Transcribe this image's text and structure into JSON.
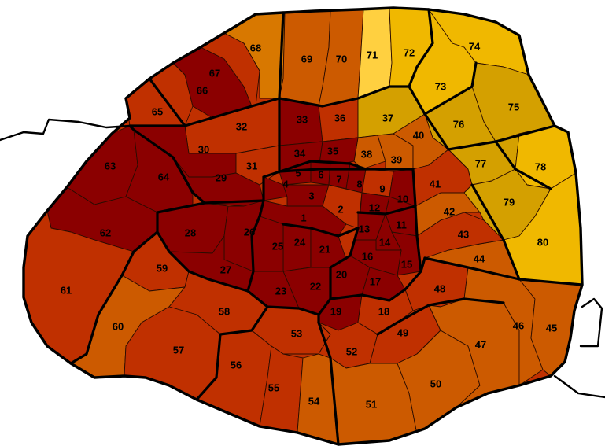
{
  "map": {
    "colors": {
      "level1": "#8b0000",
      "level2": "#c03000",
      "level3": "#cc5a00",
      "level4": "#d87800",
      "level5": "#d4a000",
      "level6": "#f0b800",
      "level7": "#ffd040"
    },
    "districts": [
      {
        "id": "1",
        "level": 1
      },
      {
        "id": "2",
        "level": 2
      },
      {
        "id": "3",
        "level": 1
      },
      {
        "id": "4",
        "level": 1
      },
      {
        "id": "5",
        "level": 1
      },
      {
        "id": "6",
        "level": 1
      },
      {
        "id": "7",
        "level": 1
      },
      {
        "id": "8",
        "level": 1
      },
      {
        "id": "9",
        "level": 2
      },
      {
        "id": "10",
        "level": 1
      },
      {
        "id": "11",
        "level": 1
      },
      {
        "id": "12",
        "level": 1
      },
      {
        "id": "13",
        "level": 1
      },
      {
        "id": "14",
        "level": 1
      },
      {
        "id": "15",
        "level": 1
      },
      {
        "id": "16",
        "level": 1
      },
      {
        "id": "17",
        "level": 1
      },
      {
        "id": "18",
        "level": 2
      },
      {
        "id": "19",
        "level": 1
      },
      {
        "id": "20",
        "level": 1
      },
      {
        "id": "21",
        "level": 1
      },
      {
        "id": "22",
        "level": 1
      },
      {
        "id": "23",
        "level": 1
      },
      {
        "id": "24",
        "level": 1
      },
      {
        "id": "25",
        "level": 1
      },
      {
        "id": "26",
        "level": 1
      },
      {
        "id": "27",
        "level": 1
      },
      {
        "id": "28",
        "level": 1
      },
      {
        "id": "29",
        "level": 1
      },
      {
        "id": "30",
        "level": 1
      },
      {
        "id": "31",
        "level": 2
      },
      {
        "id": "32",
        "level": 2
      },
      {
        "id": "33",
        "level": 1
      },
      {
        "id": "34",
        "level": 1
      },
      {
        "id": "35",
        "level": 1
      },
      {
        "id": "36",
        "level": 2
      },
      {
        "id": "37",
        "level": 5
      },
      {
        "id": "38",
        "level": 3
      },
      {
        "id": "39",
        "level": 3
      },
      {
        "id": "40",
        "level": 3
      },
      {
        "id": "41",
        "level": 2
      },
      {
        "id": "42",
        "level": 3
      },
      {
        "id": "43",
        "level": 2
      },
      {
        "id": "44",
        "level": 3
      },
      {
        "id": "45",
        "level": 3
      },
      {
        "id": "46",
        "level": 3
      },
      {
        "id": "47",
        "level": 3
      },
      {
        "id": "48",
        "level": 2
      },
      {
        "id": "49",
        "level": 2
      },
      {
        "id": "50",
        "level": 3
      },
      {
        "id": "51",
        "level": 3
      },
      {
        "id": "52",
        "level": 2
      },
      {
        "id": "53",
        "level": 2
      },
      {
        "id": "54",
        "level": 3
      },
      {
        "id": "55",
        "level": 2
      },
      {
        "id": "56",
        "level": 2
      },
      {
        "id": "57",
        "level": 2
      },
      {
        "id": "58",
        "level": 2
      },
      {
        "id": "59",
        "level": 2
      },
      {
        "id": "60",
        "level": 3
      },
      {
        "id": "61",
        "level": 2
      },
      {
        "id": "62",
        "level": 1
      },
      {
        "id": "63",
        "level": 1
      },
      {
        "id": "64",
        "level": 1
      },
      {
        "id": "65",
        "level": 2
      },
      {
        "id": "66",
        "level": 1
      },
      {
        "id": "67",
        "level": 2
      },
      {
        "id": "68",
        "level": 4
      },
      {
        "id": "69",
        "level": 3
      },
      {
        "id": "70",
        "level": 3
      },
      {
        "id": "71",
        "level": 7
      },
      {
        "id": "72",
        "level": 6
      },
      {
        "id": "73",
        "level": 6
      },
      {
        "id": "74",
        "level": 6
      },
      {
        "id": "75",
        "level": 5
      },
      {
        "id": "76",
        "level": 5
      },
      {
        "id": "77",
        "level": 5
      },
      {
        "id": "78",
        "level": 6
      },
      {
        "id": "79",
        "level": 5
      },
      {
        "id": "80",
        "level": 6
      }
    ]
  }
}
